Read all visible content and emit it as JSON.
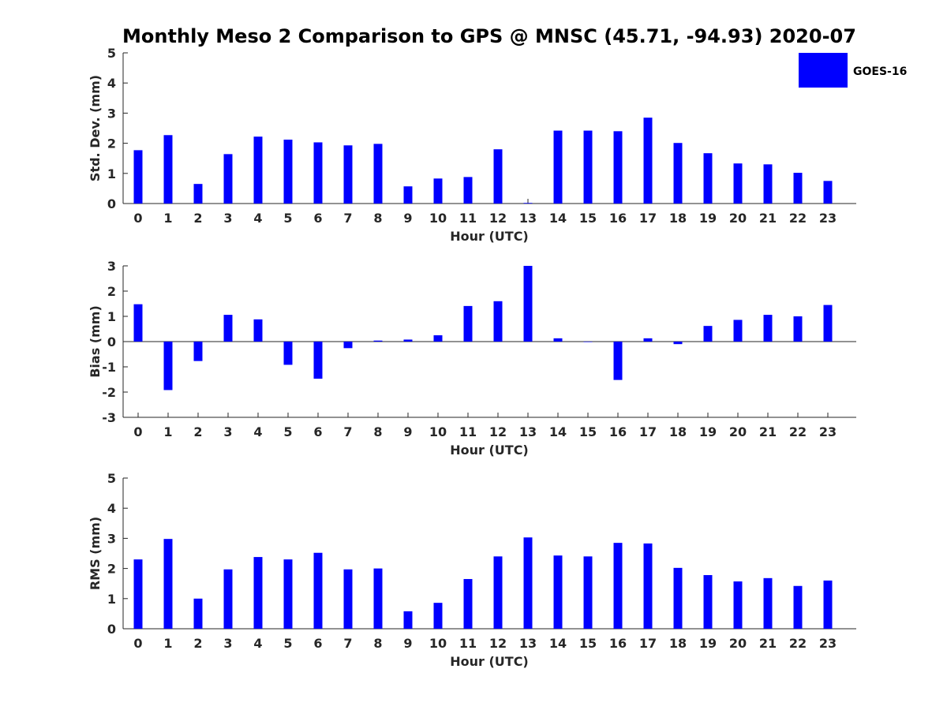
{
  "figure": {
    "title": "Monthly Meso 2 Comparison to GPS @ MNSC (45.71, -94.93) 2020-07",
    "colors": {
      "bar": "#0000ff",
      "axis": "#262626",
      "background": "#ffffff"
    }
  },
  "legend": {
    "label": "GOES-16",
    "placement": "top-right"
  },
  "chart_data": [
    {
      "type": "bar",
      "id": "std",
      "title": "Monthly Meso 2 Comparison to GPS @ MNSC (45.71, -94.93) 2020-07",
      "xlabel": "Hour (UTC)",
      "ylabel": "Std. Dev. (mm)",
      "ylim": [
        0,
        5
      ],
      "yticks": [
        0,
        1,
        2,
        3,
        4,
        5
      ],
      "categories": [
        "0",
        "1",
        "2",
        "3",
        "4",
        "5",
        "6",
        "7",
        "8",
        "9",
        "10",
        "11",
        "12",
        "13",
        "14",
        "15",
        "16",
        "17",
        "18",
        "19",
        "20",
        "21",
        "22",
        "23"
      ],
      "series": [
        {
          "name": "GOES-16",
          "values": [
            1.77,
            2.27,
            0.65,
            1.64,
            2.22,
            2.12,
            2.03,
            1.93,
            1.98,
            0.57,
            0.83,
            0.88,
            1.8,
            0.02,
            2.42,
            2.42,
            2.4,
            2.85,
            2.01,
            1.67,
            1.33,
            1.3,
            1.02,
            0.75
          ]
        }
      ]
    },
    {
      "type": "bar",
      "id": "bias",
      "xlabel": "Hour (UTC)",
      "ylabel": "Bias (mm)",
      "ylim": [
        -3,
        3
      ],
      "yticks": [
        -3,
        -2,
        -1,
        0,
        1,
        2,
        3
      ],
      "categories": [
        "0",
        "1",
        "2",
        "3",
        "4",
        "5",
        "6",
        "7",
        "8",
        "9",
        "10",
        "11",
        "12",
        "13",
        "14",
        "15",
        "16",
        "17",
        "18",
        "19",
        "20",
        "21",
        "22",
        "23"
      ],
      "series": [
        {
          "name": "GOES-16",
          "values": [
            1.48,
            -1.92,
            -0.77,
            1.06,
            0.88,
            -0.92,
            -1.47,
            -0.26,
            0.04,
            0.08,
            0.25,
            1.41,
            1.6,
            3.0,
            0.13,
            0.0,
            -1.52,
            0.13,
            -0.1,
            0.62,
            0.86,
            1.06,
            1.0,
            1.45
          ]
        }
      ]
    },
    {
      "type": "bar",
      "id": "rms",
      "xlabel": "Hour (UTC)",
      "ylabel": "RMS (mm)",
      "ylim": [
        0,
        5
      ],
      "yticks": [
        0,
        1,
        2,
        3,
        4,
        5
      ],
      "categories": [
        "0",
        "1",
        "2",
        "3",
        "4",
        "5",
        "6",
        "7",
        "8",
        "9",
        "10",
        "11",
        "12",
        "13",
        "14",
        "15",
        "16",
        "17",
        "18",
        "19",
        "20",
        "21",
        "22",
        "23"
      ],
      "series": [
        {
          "name": "GOES-16",
          "values": [
            2.3,
            2.98,
            1.0,
            1.97,
            2.38,
            2.3,
            2.52,
            1.97,
            2.0,
            0.58,
            0.86,
            1.65,
            2.4,
            3.03,
            2.43,
            2.4,
            2.85,
            2.83,
            2.02,
            1.78,
            1.57,
            1.68,
            1.42,
            1.6
          ]
        }
      ]
    }
  ]
}
